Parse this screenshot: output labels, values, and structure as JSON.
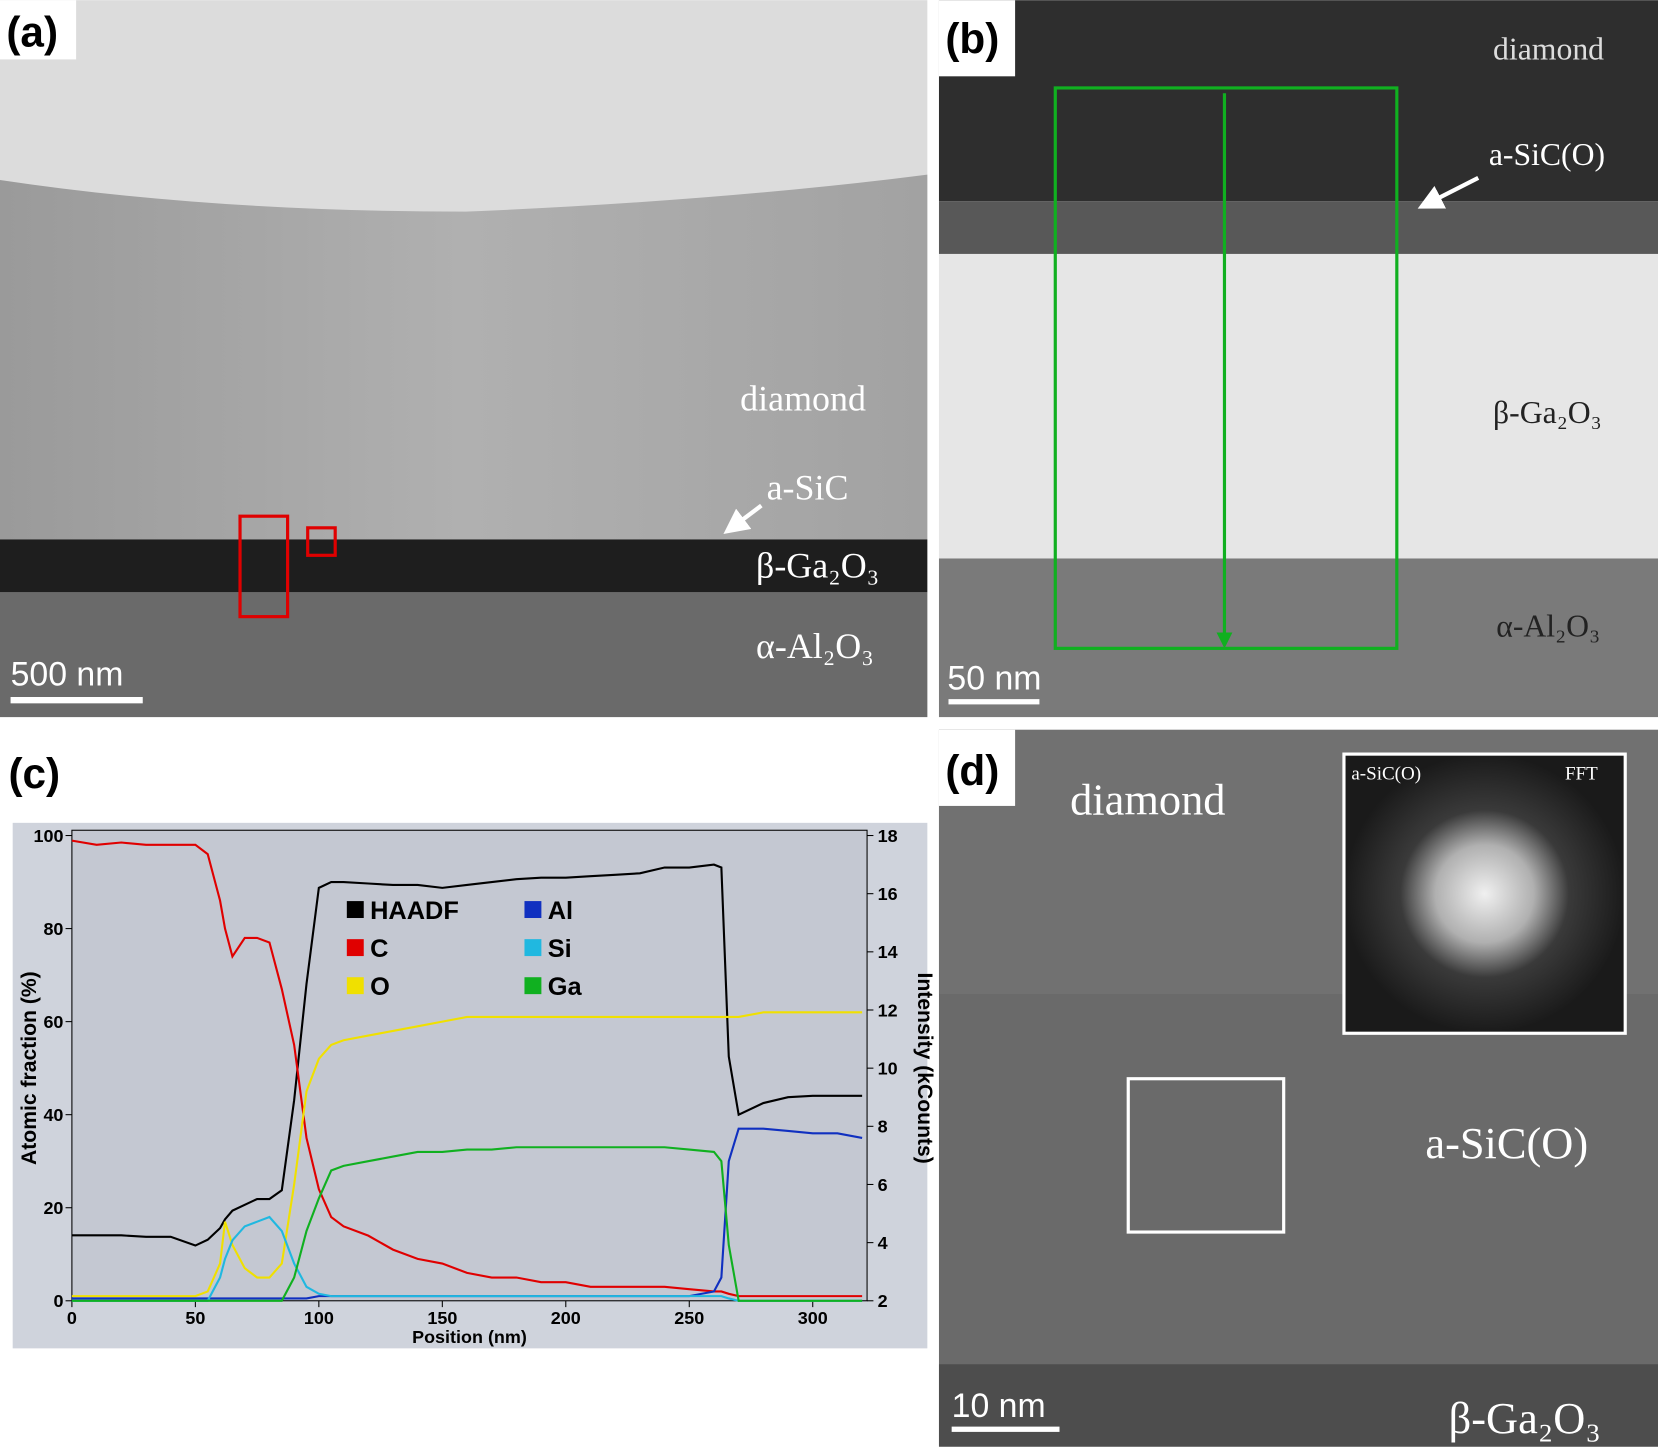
{
  "panels": {
    "a": {
      "label": "(a)",
      "annotations": [
        "diamond",
        "a-SiC",
        "β-Ga₂O₃",
        "α-Al₂O₃"
      ],
      "scale_bar": "500 nm"
    },
    "b": {
      "label": "(b)",
      "annotations": [
        "diamond",
        "a-SiC(O)",
        "β-Ga₂O₃",
        "α-Al₂O₃"
      ],
      "scale_bar": "50 nm"
    },
    "c": {
      "label": "(c)"
    },
    "d": {
      "label": "(d)",
      "annotations": [
        "diamond",
        "a-SiC(O)",
        "β-Ga₂O₃"
      ],
      "inset_labels": [
        "a-SiC(O)",
        "FFT"
      ],
      "scale_bar": "10 nm"
    }
  },
  "chart_data": {
    "type": "line",
    "xlabel": "Position (nm)",
    "ylabel": "Atomic fraction (%)",
    "y2label": "Intensity (kCounts)",
    "xlim": [
      0,
      322
    ],
    "xticks": [
      0,
      50,
      100,
      150,
      200,
      250,
      300
    ],
    "ylim": [
      0,
      100
    ],
    "yticks": [
      0,
      20,
      40,
      60,
      80,
      100
    ],
    "y2lim": [
      2,
      18
    ],
    "y2ticks": [
      2,
      4,
      6,
      8,
      10,
      12,
      14,
      16,
      18
    ],
    "x": [
      0,
      10,
      20,
      30,
      40,
      50,
      55,
      60,
      62,
      65,
      70,
      75,
      80,
      85,
      90,
      95,
      100,
      105,
      110,
      120,
      130,
      140,
      150,
      160,
      170,
      180,
      190,
      200,
      210,
      220,
      230,
      240,
      250,
      260,
      263,
      266,
      270,
      280,
      290,
      300,
      310,
      320
    ],
    "series": [
      {
        "name": "HAADF",
        "color": "#000000",
        "axis": "y2",
        "values": [
          4.25,
          4.25,
          4.25,
          4.2,
          4.2,
          3.9,
          4.1,
          4.5,
          4.8,
          5.1,
          5.3,
          5.5,
          5.5,
          5.8,
          8.9,
          12.9,
          16.2,
          16.4,
          16.4,
          16.35,
          16.3,
          16.3,
          16.2,
          16.3,
          16.4,
          16.5,
          16.55,
          16.55,
          16.6,
          16.65,
          16.7,
          16.9,
          16.9,
          17.0,
          16.9,
          10.4,
          8.4,
          8.8,
          9.0,
          9.05,
          9.05,
          9.05
        ]
      },
      {
        "name": "C",
        "color": "#e00000",
        "values": [
          98.9,
          98,
          98.5,
          98,
          98,
          98,
          96,
          86,
          80,
          74,
          78,
          78,
          77,
          67,
          55,
          35,
          24,
          18,
          16,
          14,
          11,
          9,
          8,
          6,
          5,
          5,
          4,
          4,
          3,
          3,
          3,
          3,
          2.5,
          2,
          2,
          1.5,
          1,
          1,
          1,
          1,
          1,
          1
        ]
      },
      {
        "name": "O",
        "color": "#f0e000",
        "values": [
          1,
          1,
          1,
          1,
          1,
          1,
          2,
          8,
          17,
          12,
          7,
          5,
          5,
          8,
          25,
          45,
          52,
          55,
          56,
          57,
          58,
          59,
          60,
          61,
          61,
          61,
          61,
          61,
          61,
          61,
          61,
          61,
          61,
          61,
          61,
          61,
          61,
          62,
          62,
          62,
          62,
          62
        ]
      },
      {
        "name": "Al",
        "color": "#1030c0",
        "values": [
          0.5,
          0.5,
          0.5,
          0.5,
          0.5,
          0.5,
          0.5,
          0.5,
          0.5,
          0.5,
          0.5,
          0.5,
          0.5,
          0.5,
          0.5,
          0.5,
          1,
          1,
          1,
          1,
          1,
          1,
          1,
          1,
          1,
          1,
          1,
          1,
          1,
          1,
          1,
          1,
          1,
          2,
          5,
          30,
          37,
          37,
          36.5,
          36,
          36,
          35
        ]
      },
      {
        "name": "Si",
        "color": "#20b8e0",
        "values": [
          0,
          0,
          0,
          0,
          0,
          0,
          0,
          5,
          9,
          13,
          16,
          17,
          18,
          15,
          8,
          3,
          1.5,
          1,
          1,
          1,
          1,
          1,
          1,
          1,
          1,
          1,
          1,
          1,
          1,
          1,
          1,
          1,
          1,
          1,
          1,
          0.5,
          0,
          0,
          0,
          0,
          0,
          0
        ]
      },
      {
        "name": "Ga",
        "color": "#10b020",
        "values": [
          0,
          0,
          0,
          0,
          0,
          0,
          0,
          0,
          0,
          0,
          0,
          0,
          0,
          0,
          5,
          15,
          22,
          28,
          29,
          30,
          31,
          32,
          32,
          32.5,
          32.5,
          33,
          33,
          33,
          33,
          33,
          33,
          33,
          32.5,
          32,
          30,
          12,
          0,
          0,
          0,
          0,
          0,
          0
        ]
      }
    ]
  }
}
